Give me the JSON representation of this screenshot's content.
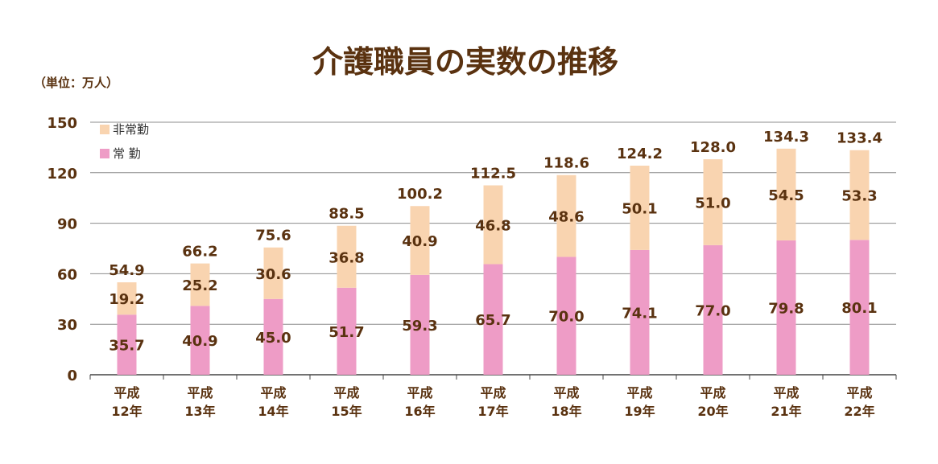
{
  "colors": {
    "regular": "#ee9cc6",
    "nonregular": "#f9d4b0",
    "text": "#5a3210",
    "grid": "#8c8c8c"
  },
  "chart_data": {
    "type": "bar",
    "stacked": true,
    "title": "介護職員の実数の推移",
    "unit_label": "（単位：万人）",
    "ylim": [
      0,
      150
    ],
    "yticks": [
      0,
      30,
      60,
      90,
      120,
      150
    ],
    "grid": true,
    "legend_position": "top-left",
    "categories": [
      [
        "平成",
        "12年"
      ],
      [
        "平成",
        "13年"
      ],
      [
        "平成",
        "14年"
      ],
      [
        "平成",
        "15年"
      ],
      [
        "平成",
        "16年"
      ],
      [
        "平成",
        "17年"
      ],
      [
        "平成",
        "18年"
      ],
      [
        "平成",
        "19年"
      ],
      [
        "平成",
        "20年"
      ],
      [
        "平成",
        "21年"
      ],
      [
        "平成",
        "22年"
      ]
    ],
    "series": [
      {
        "name": "常 勤",
        "values": [
          35.7,
          40.9,
          45.0,
          51.7,
          59.3,
          65.7,
          70.0,
          74.1,
          77.0,
          79.8,
          80.1
        ]
      },
      {
        "name": "非常勤",
        "values": [
          19.2,
          25.2,
          30.6,
          36.8,
          40.9,
          46.8,
          48.6,
          50.1,
          51.0,
          54.5,
          53.3
        ]
      }
    ],
    "totals": [
      54.9,
      66.2,
      75.6,
      88.5,
      100.2,
      112.5,
      118.6,
      124.2,
      128.0,
      134.3,
      133.4
    ],
    "legend": [
      {
        "label": "非常勤",
        "series": "nonregular"
      },
      {
        "label": "常 勤",
        "series": "regular"
      }
    ]
  }
}
